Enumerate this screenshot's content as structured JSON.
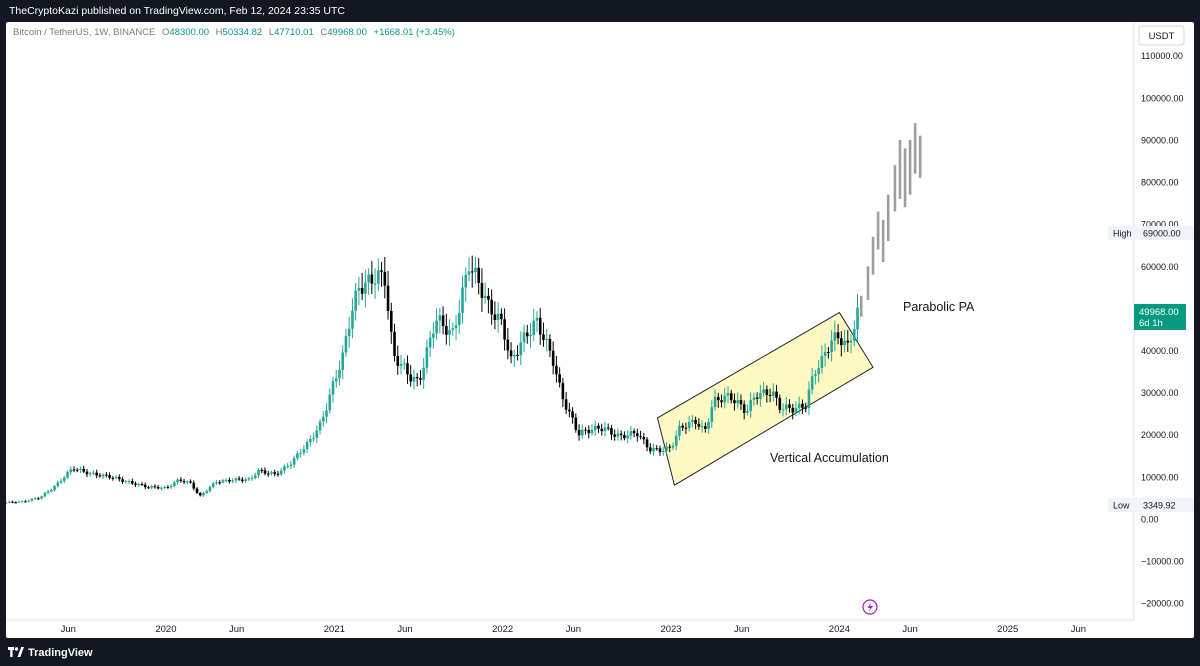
{
  "header": {
    "published_text": "TheCryptoKazi published on TradingView.com, Feb 12, 2024 23:35 UTC"
  },
  "footer": {
    "brand": "TradingView"
  },
  "legend": {
    "symbol": "Bitcoin / TetherUS, 1W, BINANCE",
    "o_key": "O",
    "o_val": "48300.00",
    "h_key": "H",
    "h_val": "50334.82",
    "l_key": "L",
    "l_val": "47710.01",
    "c_key": "C",
    "c_val": "49968.00",
    "change": "+1668.01 (+3.45%)"
  },
  "currency_button": "USDT",
  "badges": {
    "high_label": "High",
    "high_value": "69000.00",
    "low_label": "Low",
    "low_value": "3349.92",
    "last_price": "49968.00",
    "countdown": "6d 1h"
  },
  "annotations": {
    "parabolic": "Parabolic PA",
    "accumulation": "Vertical Accumulation"
  },
  "colors": {
    "up": "#26a69a",
    "down": "#000000",
    "projection": "#9e9e9e",
    "box_fill": "#fff9c4",
    "box_stroke": "#222222",
    "price_badge": "#089981",
    "event_icon": "#9c27b0"
  },
  "icons": {
    "event": "lightning-icon",
    "brand": "tradingview-logo-icon"
  },
  "chart_data": {
    "type": "candlestick",
    "timeframe": "1W",
    "y_axis": {
      "ticks": [
        110000,
        100000,
        90000,
        80000,
        70000,
        60000,
        50000,
        40000,
        30000,
        20000,
        10000,
        0,
        -10000,
        -20000
      ],
      "tick_labels": [
        "110000.00",
        "100000.00",
        "90000.00",
        "80000.00",
        "70000.00",
        "60000.00",
        "50000.00",
        "40000.00",
        "30000.00",
        "20000.00",
        "10000.00",
        "0.00",
        "−10000.00",
        "−20000.00"
      ],
      "range": [
        -24000,
        118000
      ]
    },
    "x_axis": {
      "tick_labels": [
        "Jun",
        "2020",
        "Jun",
        "2021",
        "Jun",
        "2022",
        "Jun",
        "2023",
        "Jun",
        "2024",
        "Jun",
        "2025",
        "Jun"
      ],
      "tick_dates": [
        2019.42,
        2020.0,
        2020.42,
        2021.0,
        2021.42,
        2022.0,
        2022.42,
        2023.0,
        2023.42,
        2024.0,
        2024.42,
        2025.0,
        2025.42
      ],
      "range": [
        2019.05,
        2025.75
      ]
    },
    "series_path": [
      [
        2019.05,
        3900
      ],
      [
        2019.15,
        4000
      ],
      [
        2019.25,
        5200
      ],
      [
        2019.35,
        8000
      ],
      [
        2019.45,
        12000
      ],
      [
        2019.5,
        11500
      ],
      [
        2019.55,
        11000
      ],
      [
        2019.65,
        10000
      ],
      [
        2019.75,
        9000
      ],
      [
        2019.82,
        8500
      ],
      [
        2019.9,
        7500
      ],
      [
        2020.0,
        7200
      ],
      [
        2020.08,
        9500
      ],
      [
        2020.15,
        8500
      ],
      [
        2020.2,
        5200
      ],
      [
        2020.3,
        8800
      ],
      [
        2020.4,
        9500
      ],
      [
        2020.5,
        9200
      ],
      [
        2020.55,
        11200
      ],
      [
        2020.65,
        10800
      ],
      [
        2020.75,
        13500
      ],
      [
        2020.85,
        18000
      ],
      [
        2020.92,
        23000
      ],
      [
        2021.0,
        33000
      ],
      [
        2021.05,
        38000
      ],
      [
        2021.1,
        48000
      ],
      [
        2021.15,
        55000
      ],
      [
        2021.25,
        59000
      ],
      [
        2021.3,
        57000
      ],
      [
        2021.35,
        38000
      ],
      [
        2021.45,
        34000
      ],
      [
        2021.5,
        33000
      ],
      [
        2021.55,
        40000
      ],
      [
        2021.6,
        47000
      ],
      [
        2021.7,
        43000
      ],
      [
        2021.75,
        52000
      ],
      [
        2021.8,
        62000
      ],
      [
        2021.85,
        57000
      ],
      [
        2021.92,
        49000
      ],
      [
        2022.0,
        46000
      ],
      [
        2022.05,
        38000
      ],
      [
        2022.1,
        42000
      ],
      [
        2022.2,
        46000
      ],
      [
        2022.3,
        38000
      ],
      [
        2022.35,
        30000
      ],
      [
        2022.45,
        20000
      ],
      [
        2022.5,
        20500
      ],
      [
        2022.6,
        22000
      ],
      [
        2022.7,
        19500
      ],
      [
        2022.8,
        20000
      ],
      [
        2022.87,
        16800
      ],
      [
        2022.95,
        16600
      ],
      [
        2023.0,
        16800
      ],
      [
        2023.05,
        21000
      ],
      [
        2023.15,
        23500
      ],
      [
        2023.2,
        21000
      ],
      [
        2023.25,
        28000
      ],
      [
        2023.35,
        28500
      ],
      [
        2023.45,
        26000
      ],
      [
        2023.5,
        30000
      ],
      [
        2023.6,
        29500
      ],
      [
        2023.65,
        26000
      ],
      [
        2023.75,
        26800
      ],
      [
        2023.8,
        27500
      ],
      [
        2023.85,
        34500
      ],
      [
        2023.9,
        37000
      ],
      [
        2023.95,
        42000
      ],
      [
        2024.0,
        44000
      ],
      [
        2024.05,
        41500
      ],
      [
        2024.1,
        48000
      ],
      [
        2024.12,
        49968
      ]
    ],
    "projection_path": [
      [
        2024.13,
        50500
      ],
      [
        2024.17,
        57000
      ],
      [
        2024.2,
        64000
      ],
      [
        2024.23,
        70000
      ],
      [
        2024.26,
        67000
      ],
      [
        2024.29,
        74000
      ],
      [
        2024.33,
        80000
      ],
      [
        2024.36,
        82000
      ],
      [
        2024.39,
        78000
      ],
      [
        2024.42,
        84000
      ],
      [
        2024.45,
        90000
      ],
      [
        2024.48,
        86000
      ]
    ],
    "projection_lows": [
      48000,
      52000,
      58000,
      64000,
      61000,
      66000,
      73000,
      76000,
      74000,
      77000,
      82000,
      81000
    ],
    "projection_highs": [
      53000,
      60000,
      67000,
      73000,
      71000,
      77000,
      84000,
      90000,
      88000,
      90000,
      94000,
      91000
    ],
    "channel": {
      "corners": [
        [
          2022.92,
          24000
        ],
        [
          2024.0,
          49000
        ],
        [
          2024.2,
          36000
        ],
        [
          2023.02,
          8000
        ]
      ]
    }
  }
}
